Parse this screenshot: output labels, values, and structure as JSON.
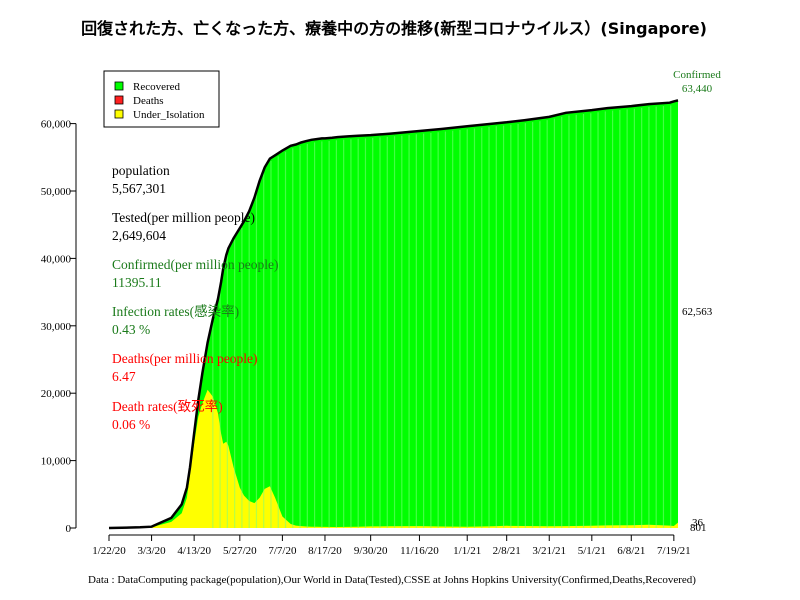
{
  "chart_data": {
    "type": "area",
    "title": "回復された方、亡くなった方、療養中の方の推移(新型コロナウイルス）(Singapore)",
    "footer": "Data : DataComputing package(population),Our World in Data(Tested),CSSE at Johns Hopkins University(Confirmed,Deaths,Recovered)",
    "ylim": [
      0,
      65000
    ],
    "y_ticks": [
      0,
      10000,
      20000,
      30000,
      40000,
      50000,
      60000
    ],
    "y_tick_labels": [
      "0",
      "10,000",
      "20,000",
      "30,000",
      "40,000",
      "50,000",
      "60,000"
    ],
    "x_tick_labels": [
      "1/22/20",
      "3/3/20",
      "4/13/20",
      "5/27/20",
      "7/7/20",
      "8/17/20",
      "9/30/20",
      "11/16/20",
      "1/1/21",
      "2/8/21",
      "3/21/21",
      "5/1/21",
      "6/8/21",
      "7/19/21"
    ],
    "x_tick_days": [
      0,
      41,
      82,
      126,
      167,
      208,
      252,
      299,
      345,
      383,
      424,
      465,
      503,
      544
    ],
    "x_max_day": 548,
    "legend": [
      {
        "label": "Recovered",
        "color": "#00ff00"
      },
      {
        "label": "Deaths",
        "color": "#ff2020"
      },
      {
        "label": "Under_Isolation",
        "color": "#ffff00"
      }
    ],
    "series": {
      "days": [
        0,
        30,
        41,
        60,
        70,
        75,
        78,
        82,
        86,
        90,
        95,
        100,
        105,
        108,
        110,
        113,
        115,
        120,
        126,
        130,
        135,
        140,
        145,
        150,
        155,
        160,
        167,
        175,
        180,
        185,
        190,
        195,
        200,
        205,
        208,
        215,
        220,
        230,
        240,
        252,
        270,
        299,
        320,
        345,
        370,
        383,
        400,
        424,
        440,
        465,
        480,
        503,
        520,
        540,
        544,
        548
      ],
      "confirmed": [
        0,
        110,
        200,
        1500,
        3500,
        6000,
        9000,
        14000,
        19000,
        23000,
        27500,
        31000,
        34000,
        36500,
        38500,
        40500,
        41500,
        43000,
        44500,
        45500,
        47000,
        49000,
        51500,
        53500,
        54800,
        55300,
        56000,
        56700,
        56900,
        57200,
        57400,
        57600,
        57700,
        57800,
        57800,
        57900,
        58000,
        58100,
        58200,
        58300,
        58500,
        58900,
        59200,
        59600,
        60000,
        60200,
        60500,
        61000,
        61600,
        62000,
        62300,
        62600,
        62900,
        63100,
        63300,
        63440
      ],
      "under_isolation": [
        0,
        60,
        110,
        900,
        2200,
        4500,
        8000,
        12500,
        16500,
        18500,
        20500,
        19500,
        17000,
        14000,
        12500,
        12800,
        12200,
        9000,
        6000,
        4800,
        4000,
        3700,
        4500,
        5800,
        6200,
        4500,
        1700,
        600,
        350,
        280,
        220,
        200,
        180,
        170,
        160,
        150,
        150,
        170,
        200,
        230,
        250,
        280,
        220,
        200,
        260,
        320,
        300,
        260,
        280,
        320,
        380,
        420,
        480,
        350,
        300,
        801
      ],
      "deaths": [
        0,
        0,
        0,
        0,
        0,
        0,
        0,
        0,
        5,
        10,
        12,
        14,
        16,
        18,
        20,
        22,
        23,
        24,
        25,
        26,
        26,
        26,
        27,
        27,
        27,
        27,
        27,
        27,
        27,
        27,
        28,
        28,
        28,
        28,
        28,
        28,
        28,
        28,
        28,
        28,
        28,
        29,
        29,
        29,
        29,
        30,
        30,
        30,
        31,
        32,
        33,
        34,
        35,
        36,
        36,
        36
      ]
    },
    "end_labels": {
      "confirmed_header": "Confirmed",
      "confirmed_value": "63,440",
      "recovered": "62,563",
      "deaths": "36",
      "under_isolation": "801"
    },
    "stats": [
      {
        "label": "population",
        "value": "5,567,301",
        "color": "#000000"
      },
      {
        "label": "Tested(per million people)",
        "value": "2,649,604",
        "color": "#000000"
      },
      {
        "label": "Confirmed(per million people)",
        "value": "11395.11",
        "color": "#1a7a1a"
      },
      {
        "label": "Infection rates(感染率)",
        "value": "0.43 %",
        "color": "#1a7a1a"
      },
      {
        "label": "Deaths(per million people)",
        "value": "6.47",
        "color": "#ff0000"
      },
      {
        "label": "Death rates(致死率)",
        "value": "0.06 %",
        "color": "#ff0000"
      }
    ]
  }
}
